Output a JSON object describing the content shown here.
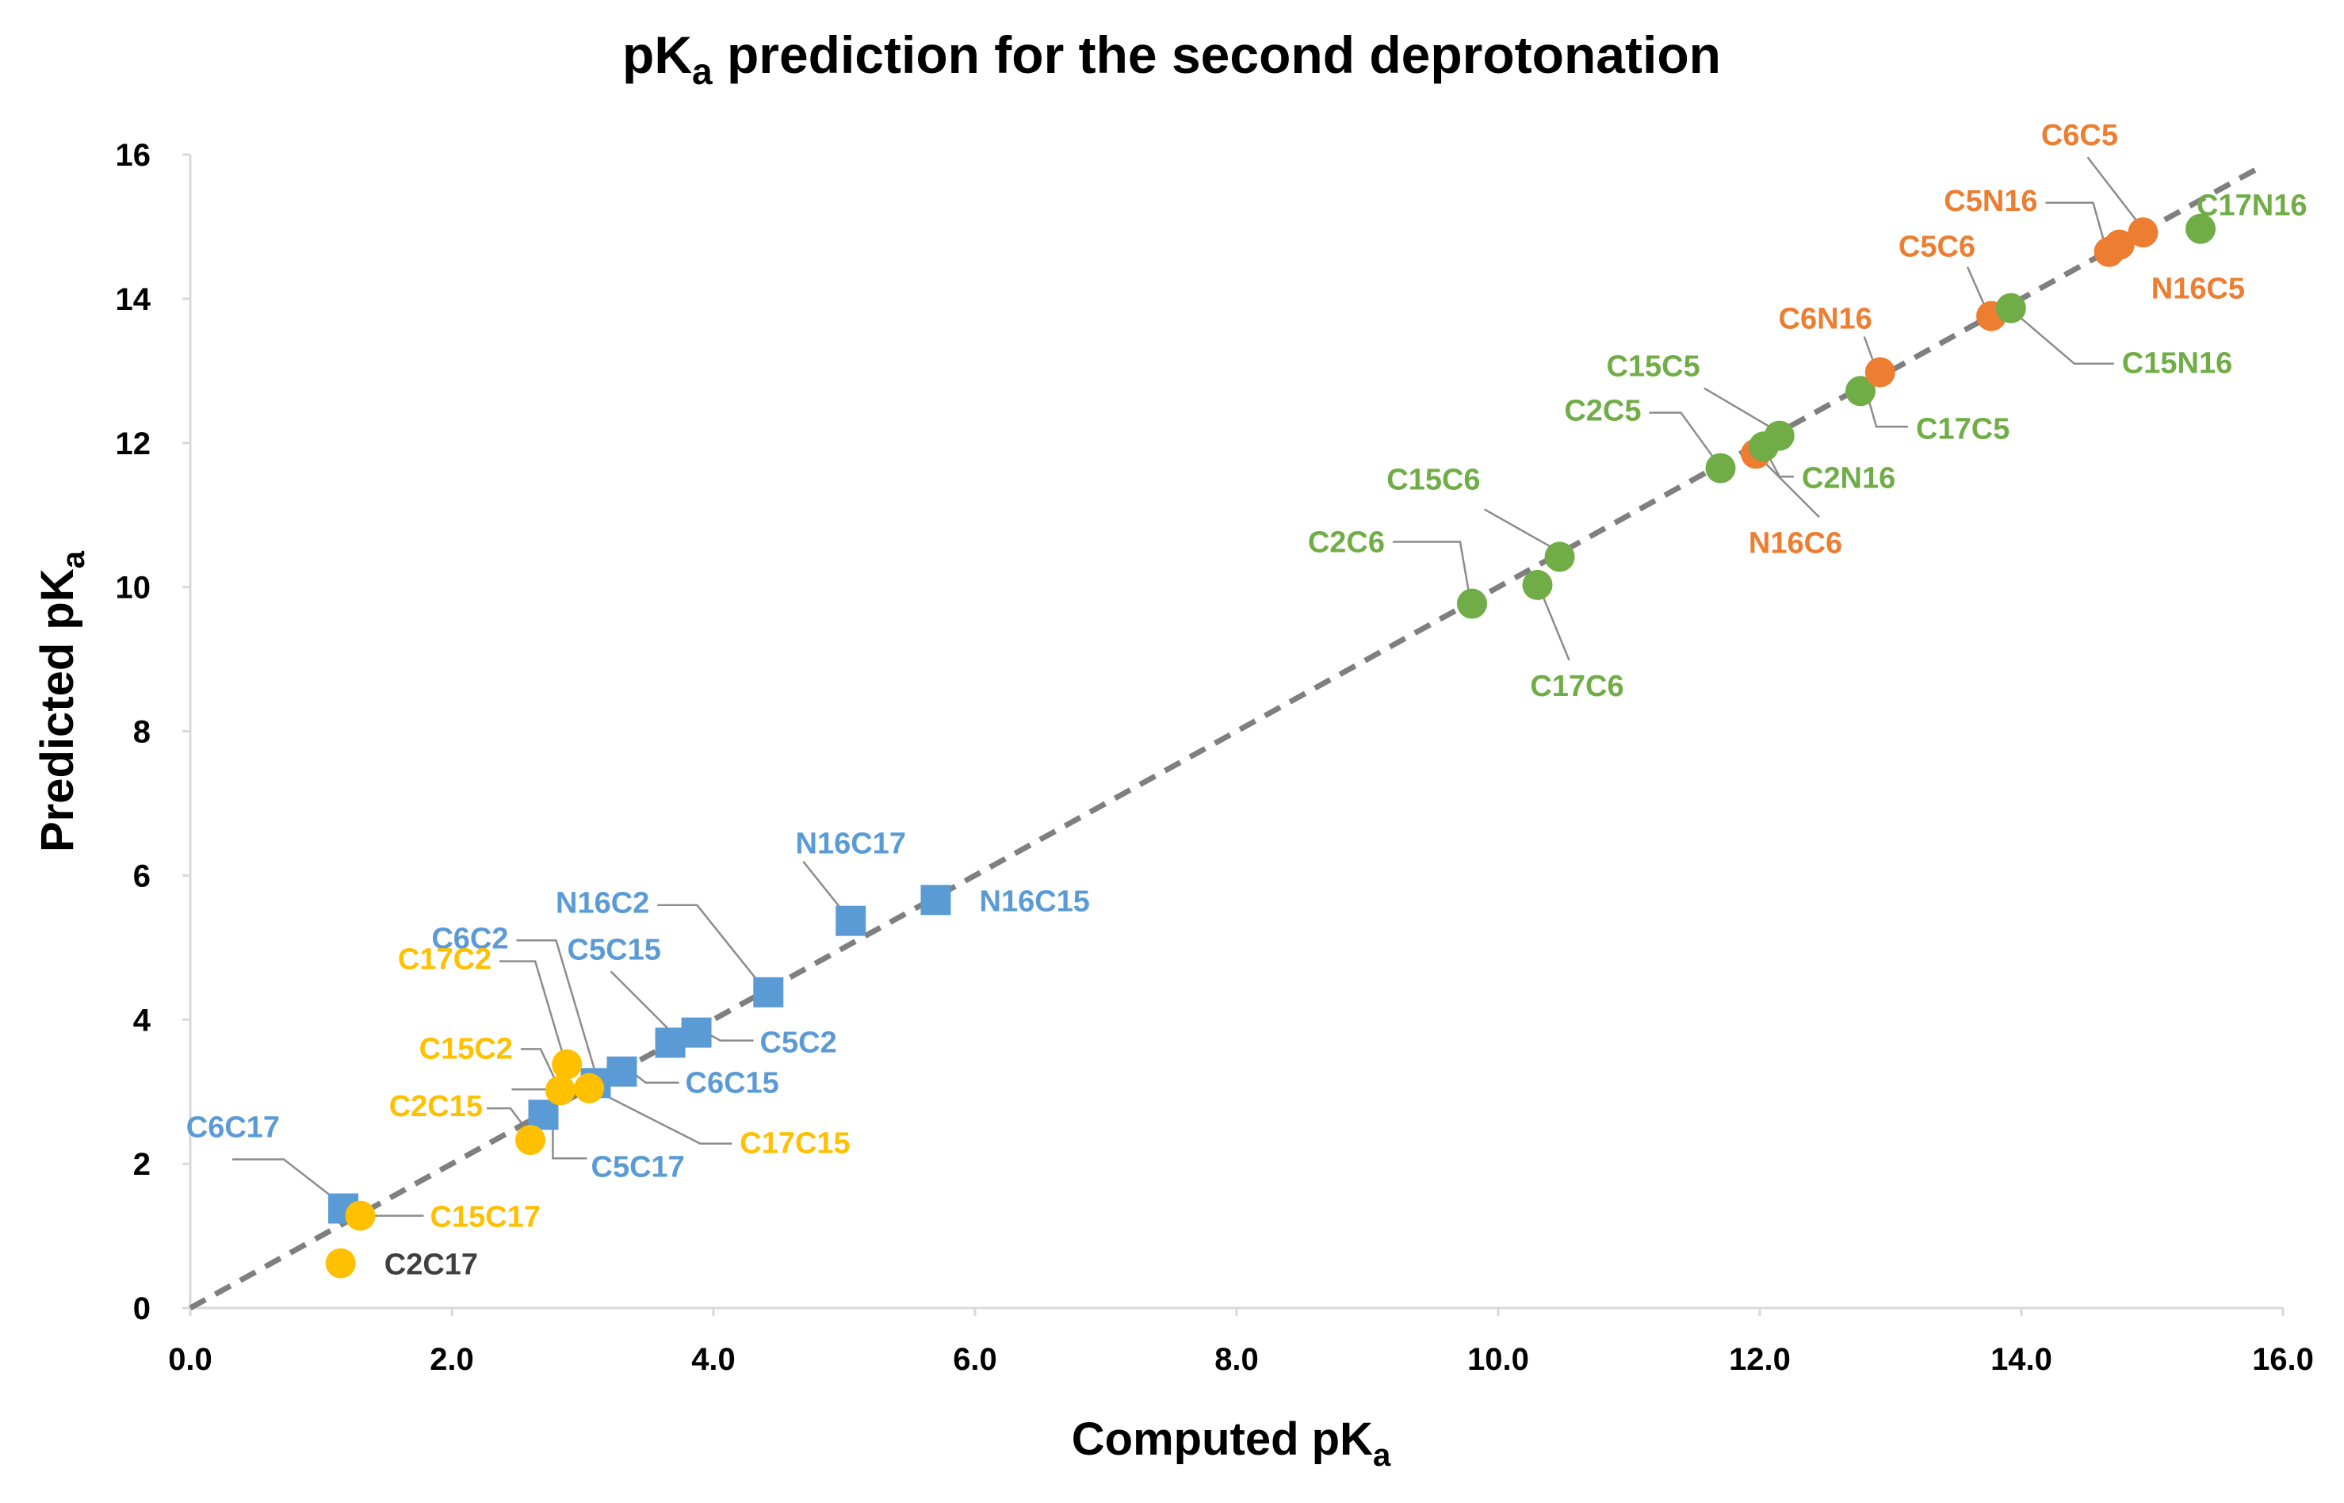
{
  "chart_data": {
    "type": "scatter",
    "title": "pK",
    "title_sub": "a",
    "title_rest": " prediction for the second deprotonation",
    "xlabel": "Computed pK",
    "xlabel_sub": "a",
    "ylabel": "Predicted pK",
    "ylabel_sub": "a",
    "xlim": [
      0,
      16
    ],
    "ylim": [
      0,
      16
    ],
    "x_ticks": [
      "0.0",
      "2.0",
      "4.0",
      "6.0",
      "8.0",
      "10.0",
      "12.0",
      "14.0",
      "16.0"
    ],
    "y_ticks": [
      "0",
      "2",
      "4",
      "6",
      "8",
      "10",
      "12",
      "14",
      "16"
    ],
    "grid": false,
    "legend": "none",
    "reference_line": {
      "style": "dashed",
      "color": "#7f7f7f",
      "from": [
        0,
        0
      ],
      "to": [
        15.8,
        15.8
      ]
    },
    "colors": {
      "blue": "#5b9bd5",
      "yellow": "#ffc000",
      "green": "#70ad47",
      "orange": "#ed7d31",
      "dark": "#404040"
    },
    "points": [
      {
        "label": "C6C17",
        "x": 1.17,
        "y": 1.38,
        "shape": "square",
        "color": "blue",
        "label_color": "blue"
      },
      {
        "label": "C5C17",
        "x": 2.7,
        "y": 2.68,
        "shape": "square",
        "color": "blue",
        "label_color": "blue"
      },
      {
        "label": "C6C2",
        "x": 3.1,
        "y": 3.12,
        "shape": "square",
        "color": "blue",
        "label_color": "blue"
      },
      {
        "label": "C6C15",
        "x": 3.3,
        "y": 3.28,
        "shape": "square",
        "color": "blue",
        "label_color": "blue"
      },
      {
        "label": "C5C15",
        "x": 3.67,
        "y": 3.68,
        "shape": "square",
        "color": "blue",
        "label_color": "blue"
      },
      {
        "label": "C5C2",
        "x": 3.87,
        "y": 3.82,
        "shape": "square",
        "color": "blue",
        "label_color": "blue"
      },
      {
        "label": "N16C2",
        "x": 4.42,
        "y": 4.38,
        "shape": "square",
        "color": "blue",
        "label_color": "blue"
      },
      {
        "label": "N16C17",
        "x": 5.05,
        "y": 5.37,
        "shape": "square",
        "color": "blue",
        "label_color": "blue"
      },
      {
        "label": "N16C15",
        "x": 5.7,
        "y": 5.66,
        "shape": "square",
        "color": "blue",
        "label_color": "blue"
      },
      {
        "label": "C2C17",
        "x": 1.15,
        "y": 0.62,
        "shape": "circle",
        "color": "yellow",
        "label_color": "dark"
      },
      {
        "label": "C15C17",
        "x": 1.3,
        "y": 1.28,
        "shape": "circle",
        "color": "yellow",
        "label_color": "yellow"
      },
      {
        "label": "C2C15",
        "x": 2.6,
        "y": 2.33,
        "shape": "circle",
        "color": "yellow",
        "label_color": "yellow"
      },
      {
        "label": "C15C2",
        "x": 2.83,
        "y": 3.02,
        "shape": "circle",
        "color": "yellow",
        "label_color": "yellow"
      },
      {
        "label": "C17C15",
        "x": 3.05,
        "y": 3.05,
        "shape": "circle",
        "color": "yellow",
        "label_color": "yellow"
      },
      {
        "label": "C17C2",
        "x": 2.88,
        "y": 3.38,
        "shape": "circle",
        "color": "yellow",
        "label_color": "yellow"
      },
      {
        "label": "C2C6",
        "x": 9.8,
        "y": 9.77,
        "shape": "circle",
        "color": "green",
        "label_color": "green"
      },
      {
        "label": "C17C6",
        "x": 10.3,
        "y": 10.03,
        "shape": "circle",
        "color": "green",
        "label_color": "green"
      },
      {
        "label": "C15C6",
        "x": 10.47,
        "y": 10.42,
        "shape": "circle",
        "color": "green",
        "label_color": "green"
      },
      {
        "label": "C2C5",
        "x": 11.7,
        "y": 11.65,
        "shape": "circle",
        "color": "green",
        "label_color": "green"
      },
      {
        "label": "N16C6",
        "x": 11.97,
        "y": 11.85,
        "shape": "circle",
        "color": "orange",
        "label_color": "orange"
      },
      {
        "label": "C2N16",
        "x": 12.03,
        "y": 11.95,
        "shape": "circle",
        "color": "green",
        "label_color": "green"
      },
      {
        "label": "C15C5",
        "x": 12.15,
        "y": 12.1,
        "shape": "circle",
        "color": "green",
        "label_color": "green"
      },
      {
        "label": "C17C5",
        "x": 12.77,
        "y": 12.72,
        "shape": "circle",
        "color": "green",
        "label_color": "green"
      },
      {
        "label": "C6N16",
        "x": 12.92,
        "y": 12.98,
        "shape": "circle",
        "color": "orange",
        "label_color": "orange"
      },
      {
        "label": "C5C6",
        "x": 13.77,
        "y": 13.76,
        "shape": "circle",
        "color": "orange",
        "label_color": "orange"
      },
      {
        "label": "C15N16",
        "x": 13.92,
        "y": 13.87,
        "shape": "circle",
        "color": "green",
        "label_color": "green"
      },
      {
        "label": "C5N16",
        "x": 14.67,
        "y": 14.65,
        "shape": "circle",
        "color": "orange",
        "label_color": "orange"
      },
      {
        "label": "N16C5",
        "x": 14.75,
        "y": 14.75,
        "shape": "circle",
        "color": "orange",
        "label_color": "orange"
      },
      {
        "label": "C6C5",
        "x": 14.93,
        "y": 14.92,
        "shape": "circle",
        "color": "orange",
        "label_color": "orange"
      },
      {
        "label": "C17N16",
        "x": 15.37,
        "y": 14.97,
        "shape": "circle",
        "color": "green",
        "label_color": "green"
      }
    ]
  }
}
